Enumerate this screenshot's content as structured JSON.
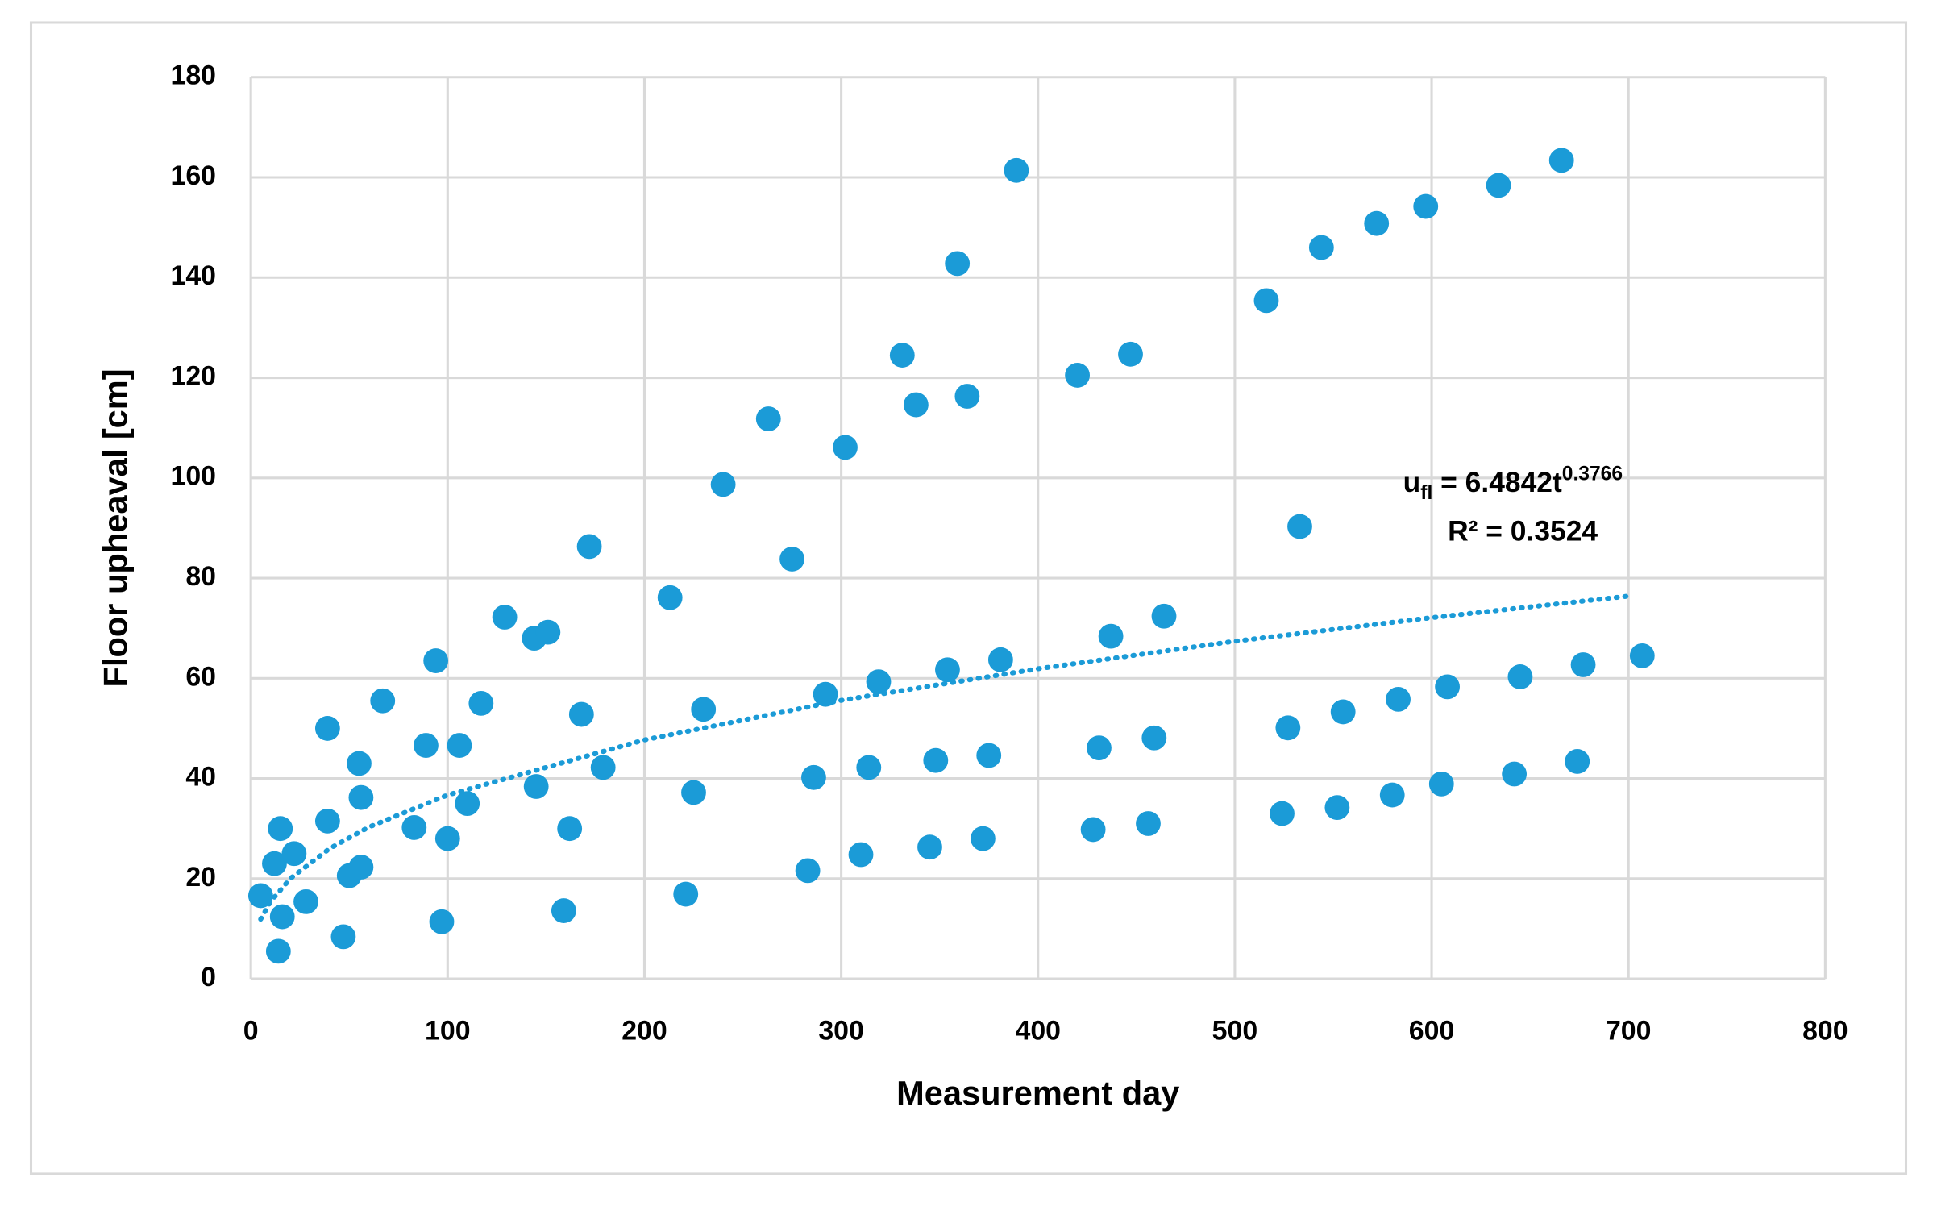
{
  "chart_data": {
    "type": "scatter",
    "x_label": "Measurement day",
    "y_label": "Floor upheaval [cm]",
    "color": "#1b9bd7",
    "x": [
      5,
      12,
      14,
      15,
      16,
      22,
      28,
      39,
      39,
      47,
      50,
      55,
      56,
      56,
      67,
      83,
      89,
      94,
      97,
      100,
      106,
      110,
      117,
      129,
      144,
      145,
      151,
      159,
      162,
      168,
      172,
      179,
      213,
      221,
      225,
      230,
      240,
      263,
      275,
      283,
      286,
      292,
      302,
      310,
      314,
      319,
      331,
      338,
      345,
      348,
      354,
      359,
      364,
      372,
      375,
      381,
      389,
      420,
      428,
      431,
      437,
      447,
      456,
      459,
      464,
      516,
      524,
      527,
      533,
      544,
      552,
      555,
      572,
      580,
      583,
      597,
      605,
      608,
      634,
      642,
      645,
      666,
      674,
      677,
      707
    ],
    "values": [
      16.6,
      23,
      5.5,
      30,
      12.4,
      25,
      15.4,
      50,
      31.5,
      8.4,
      20.6,
      43,
      22.3,
      36.2,
      55.5,
      30.2,
      46.6,
      63.5,
      11.4,
      28,
      46.6,
      35,
      55,
      72.2,
      68,
      38.4,
      69.2,
      13.6,
      30,
      52.8,
      86.3,
      42.2,
      76.1,
      16.9,
      37.2,
      53.8,
      98.7,
      111.8,
      83.8,
      21.6,
      40.2,
      56.8,
      106.1,
      24.8,
      42.2,
      59.3,
      124.5,
      114.6,
      26.3,
      43.6,
      61.7,
      142.8,
      116.3,
      28,
      44.6,
      63.7,
      161.4,
      120.5,
      29.8,
      46.1,
      68.4,
      124.7,
      31,
      48.1,
      72.4,
      135.4,
      33,
      50.1,
      90.3,
      146,
      34.2,
      53.3,
      150.8,
      36.7,
      55.8,
      154.2,
      38.9,
      58.3,
      158.4,
      40.9,
      60.3,
      163.4,
      43.4,
      62.7,
      64.5
    ],
    "trendline": {
      "color": "#1b9bd7",
      "x": [
        5,
        10,
        20,
        40,
        60,
        100,
        200,
        300,
        400,
        500,
        600,
        700
      ],
      "values": [
        11.9,
        15.4,
        20.0,
        26.0,
        30.3,
        36.7,
        47.7,
        55.6,
        61.9,
        67.4,
        72.1,
        76.4
      ]
    },
    "annotation": {
      "var": "u",
      "sub": "fl",
      "eq": " = 6.4842t",
      "sup": "0.3766",
      "r2": "R² = 0.3524"
    },
    "xlim": [
      0,
      800
    ],
    "xticks": [
      0,
      100,
      200,
      300,
      400,
      500,
      600,
      700,
      800
    ],
    "ylim": [
      0,
      180
    ],
    "yticks": [
      0,
      20,
      40,
      60,
      80,
      100,
      120,
      140,
      160,
      180
    ],
    "grid": true
  }
}
